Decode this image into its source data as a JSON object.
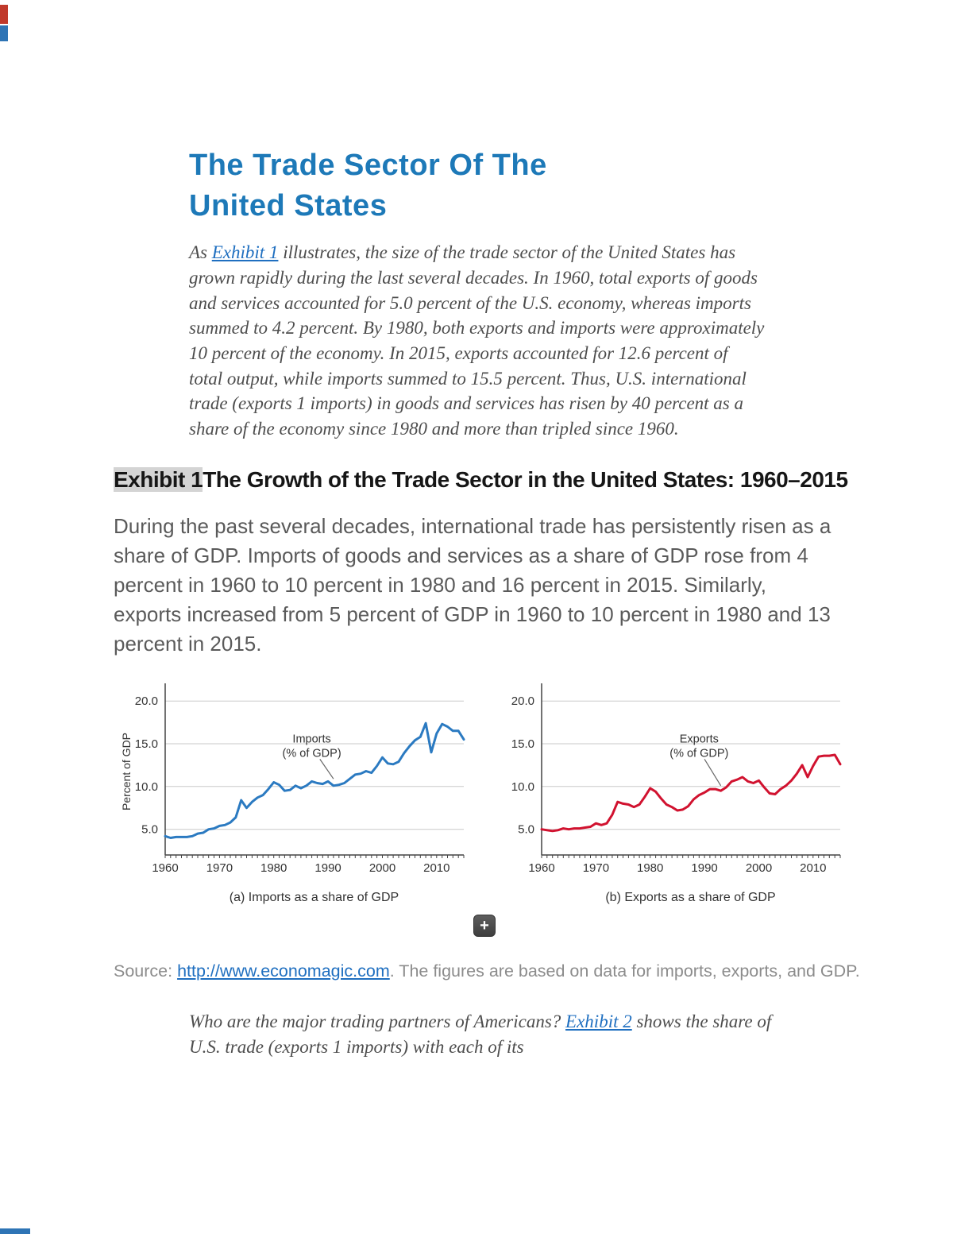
{
  "page": {
    "title": "The Trade Sector Of The United States",
    "intro": {
      "pre": "As ",
      "link": "Exhibit 1",
      "post": " illustrates, the size of the trade sector of the United States has grown rapidly during the last several decades. In 1960, total exports of goods and services accounted for 5.0 percent of the U.S. economy, whereas imports summed to 4.2 percent. By 1980, both exports and imports were approximately 10 percent of the economy. In 2015, exports accounted for 12.6 percent of total output, while imports summed to 15.5 percent. Thus, U.S. international trade (exports 1 imports) in goods and services has risen by 40 percent as a share of the economy since 1980 and more than tripled since 1960."
    },
    "exhibit_heading": {
      "tag": "Exhibit 1",
      "rest": "The Growth of the Trade Sector in the United States: 1960–2015"
    },
    "exhibit_description": "During the past several decades, international trade has persistently risen as a share of GDP. Imports of goods and services as a share of GDP rose from 4 percent in 1960 to 10 percent in 1980 and 16 percent in 2015. Similarly, exports increased from 5 percent of GDP in 1960 to 10 percent in 1980 and 13 percent in 2015.",
    "source": {
      "label": "Source: ",
      "link": "http://www.economagic.com",
      "rest": ". The figures are based on data for imports, exports, and GDP."
    },
    "closing": {
      "pre": "Who are the major trading partners of Americans? ",
      "link": "Exhibit 2",
      "post": " shows the share of U.S. trade (exports 1 imports) with each of its"
    },
    "expand_button": "+"
  },
  "colors": {
    "title_blue": "#1d79b8",
    "link_blue": "#1f6fc0",
    "heading_highlight": "#d4d4d4",
    "imports_line": "#2b7ac1",
    "exports_line": "#d1122f"
  },
  "chart_data": [
    {
      "type": "line",
      "name": "Imports",
      "label_lines": [
        "Imports",
        "(% of GDP)"
      ],
      "caption": "(a) Imports as a share of GDP",
      "ylabel": "Percent of GDP",
      "xlabel": "",
      "color": "#2b7ac1",
      "x_start": 1960,
      "x_ticks": [
        1960,
        1970,
        1980,
        1990,
        2000,
        2010
      ],
      "y_ticks": [
        5,
        10,
        15,
        20
      ],
      "ylim": [
        2,
        21.5
      ],
      "grid": true,
      "values": [
        4.2,
        4.0,
        4.1,
        4.1,
        4.1,
        4.2,
        4.5,
        4.6,
        5.0,
        5.1,
        5.4,
        5.5,
        5.8,
        6.4,
        8.4,
        7.5,
        8.2,
        8.7,
        9.0,
        9.7,
        10.5,
        10.2,
        9.5,
        9.6,
        10.1,
        9.8,
        10.1,
        10.6,
        10.4,
        10.3,
        10.6,
        10.1,
        10.2,
        10.4,
        10.9,
        11.4,
        11.5,
        11.8,
        11.6,
        12.4,
        13.4,
        12.7,
        12.6,
        12.9,
        13.9,
        14.7,
        15.4,
        15.8,
        17.4,
        14.0,
        16.2,
        17.3,
        17.0,
        16.5,
        16.5,
        15.5
      ],
      "annotation": {
        "label_year": 1987,
        "label_value": 14.6,
        "leader": [
          1988.5,
          13.2,
          1991,
          10.9
        ]
      }
    },
    {
      "type": "line",
      "name": "Exports",
      "label_lines": [
        "Exports",
        "(% of GDP)"
      ],
      "caption": "(b) Exports as a share of GDP",
      "ylabel": "",
      "xlabel": "",
      "color": "#d1122f",
      "x_start": 1960,
      "x_ticks": [
        1960,
        1970,
        1980,
        1990,
        2000,
        2010
      ],
      "y_ticks": [
        5,
        10,
        15,
        20
      ],
      "ylim": [
        2,
        21.5
      ],
      "grid": true,
      "values": [
        5.0,
        4.9,
        4.8,
        4.9,
        5.1,
        5.0,
        5.1,
        5.1,
        5.2,
        5.3,
        5.7,
        5.5,
        5.7,
        6.7,
        8.2,
        8.0,
        7.9,
        7.6,
        7.9,
        8.8,
        9.8,
        9.4,
        8.6,
        7.9,
        7.6,
        7.2,
        7.3,
        7.7,
        8.5,
        9.0,
        9.3,
        9.7,
        9.7,
        9.5,
        9.9,
        10.6,
        10.8,
        11.1,
        10.6,
        10.4,
        10.7,
        9.9,
        9.2,
        9.1,
        9.7,
        10.1,
        10.7,
        11.5,
        12.5,
        11.1,
        12.4,
        13.5,
        13.6,
        13.6,
        13.7,
        12.6
      ],
      "annotation": {
        "label_year": 1989,
        "label_value": 14.6,
        "leader": [
          1990,
          13.2,
          1993,
          10.1
        ]
      }
    }
  ]
}
